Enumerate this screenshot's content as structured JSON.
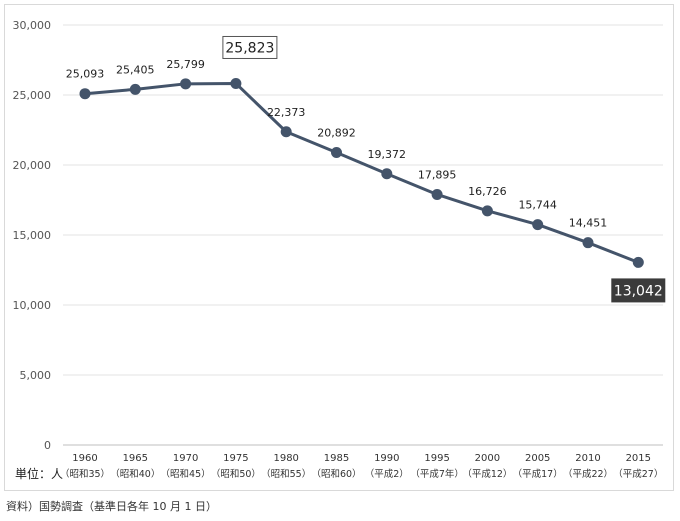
{
  "chart_data": {
    "type": "line",
    "x": [
      "1960",
      "1965",
      "1970",
      "1975",
      "1980",
      "1985",
      "1990",
      "1995",
      "2000",
      "2005",
      "2010",
      "2015"
    ],
    "x_sublabels": [
      "（昭和35）",
      "（昭和40）",
      "（昭和45）",
      "（昭和50）",
      "（昭和55）",
      "（昭和60）",
      "（平成2）",
      "（平成7年）",
      "（平成12）",
      "（平成17）",
      "（平成22）",
      "（平成27）"
    ],
    "series": [
      {
        "values": [
          25093,
          25405,
          25799,
          25823,
          22373,
          20892,
          19372,
          17895,
          16726,
          15744,
          14451,
          13042
        ]
      }
    ],
    "data_labels": [
      "25,093",
      "25,405",
      "25,799",
      "25,823",
      "22,373",
      "20,892",
      "19,372",
      "17,895",
      "16,726",
      "15,744",
      "14,451",
      "13,042"
    ],
    "ylim": [
      0,
      30000
    ],
    "yticks": [
      "0",
      "5,000",
      "10,000",
      "15,000",
      "20,000",
      "25,000",
      "30,000"
    ],
    "unit_label": "単位：人",
    "grid": true,
    "line_color": "#44546a",
    "highlight_box_index": 3,
    "highlight_fill_index": 11,
    "highlight_fill_color": "#3b3b3b"
  },
  "source_note": "資料）国勢調査（基準日各年 10 月 1 日）"
}
